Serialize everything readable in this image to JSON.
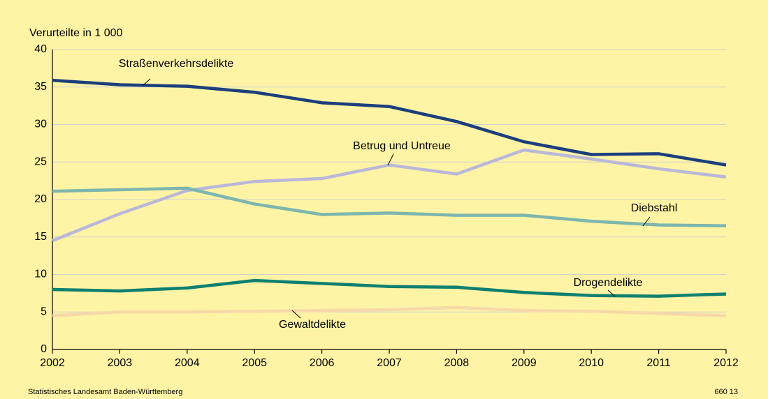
{
  "chart_data": {
    "type": "line",
    "y_axis_label": "Verurteilte in 1 000",
    "categories": [
      "2002",
      "2003",
      "2004",
      "2005",
      "2006",
      "2007",
      "2008",
      "2009",
      "2010",
      "2011",
      "2012"
    ],
    "series": [
      {
        "name": "Straßenverkehrsdelikte",
        "color": "#1b3f7c",
        "values": [
          35.9,
          35.3,
          35.1,
          34.3,
          32.9,
          32.4,
          30.4,
          27.7,
          26.0,
          26.1,
          24.6
        ]
      },
      {
        "name": "Betrug und Untreue",
        "color": "#b9b8d9",
        "values": [
          14.5,
          18.1,
          21.2,
          22.4,
          22.8,
          24.6,
          23.4,
          26.6,
          25.4,
          24.1,
          23.0
        ]
      },
      {
        "name": "Diebstahl",
        "color": "#7db6ae",
        "values": [
          21.1,
          21.3,
          21.5,
          19.4,
          18.0,
          18.2,
          17.9,
          17.9,
          17.1,
          16.6,
          16.5
        ]
      },
      {
        "name": "Drogendelikte",
        "color": "#0f8070",
        "values": [
          8.0,
          7.8,
          8.2,
          9.2,
          8.8,
          8.4,
          8.3,
          7.6,
          7.2,
          7.1,
          7.4
        ]
      },
      {
        "name": "Gewaltdelikte",
        "color": "#f7d9a9",
        "values": [
          4.5,
          5.0,
          5.0,
          5.1,
          5.2,
          5.3,
          5.6,
          5.2,
          5.1,
          4.8,
          4.5
        ]
      }
    ],
    "ylim": [
      0,
      40
    ],
    "yticks": [
      0,
      5,
      10,
      15,
      20,
      25,
      30,
      35,
      40
    ],
    "grid": true,
    "source": "Statistisches Landesamt Baden-Württemberg",
    "code": "660 13"
  }
}
